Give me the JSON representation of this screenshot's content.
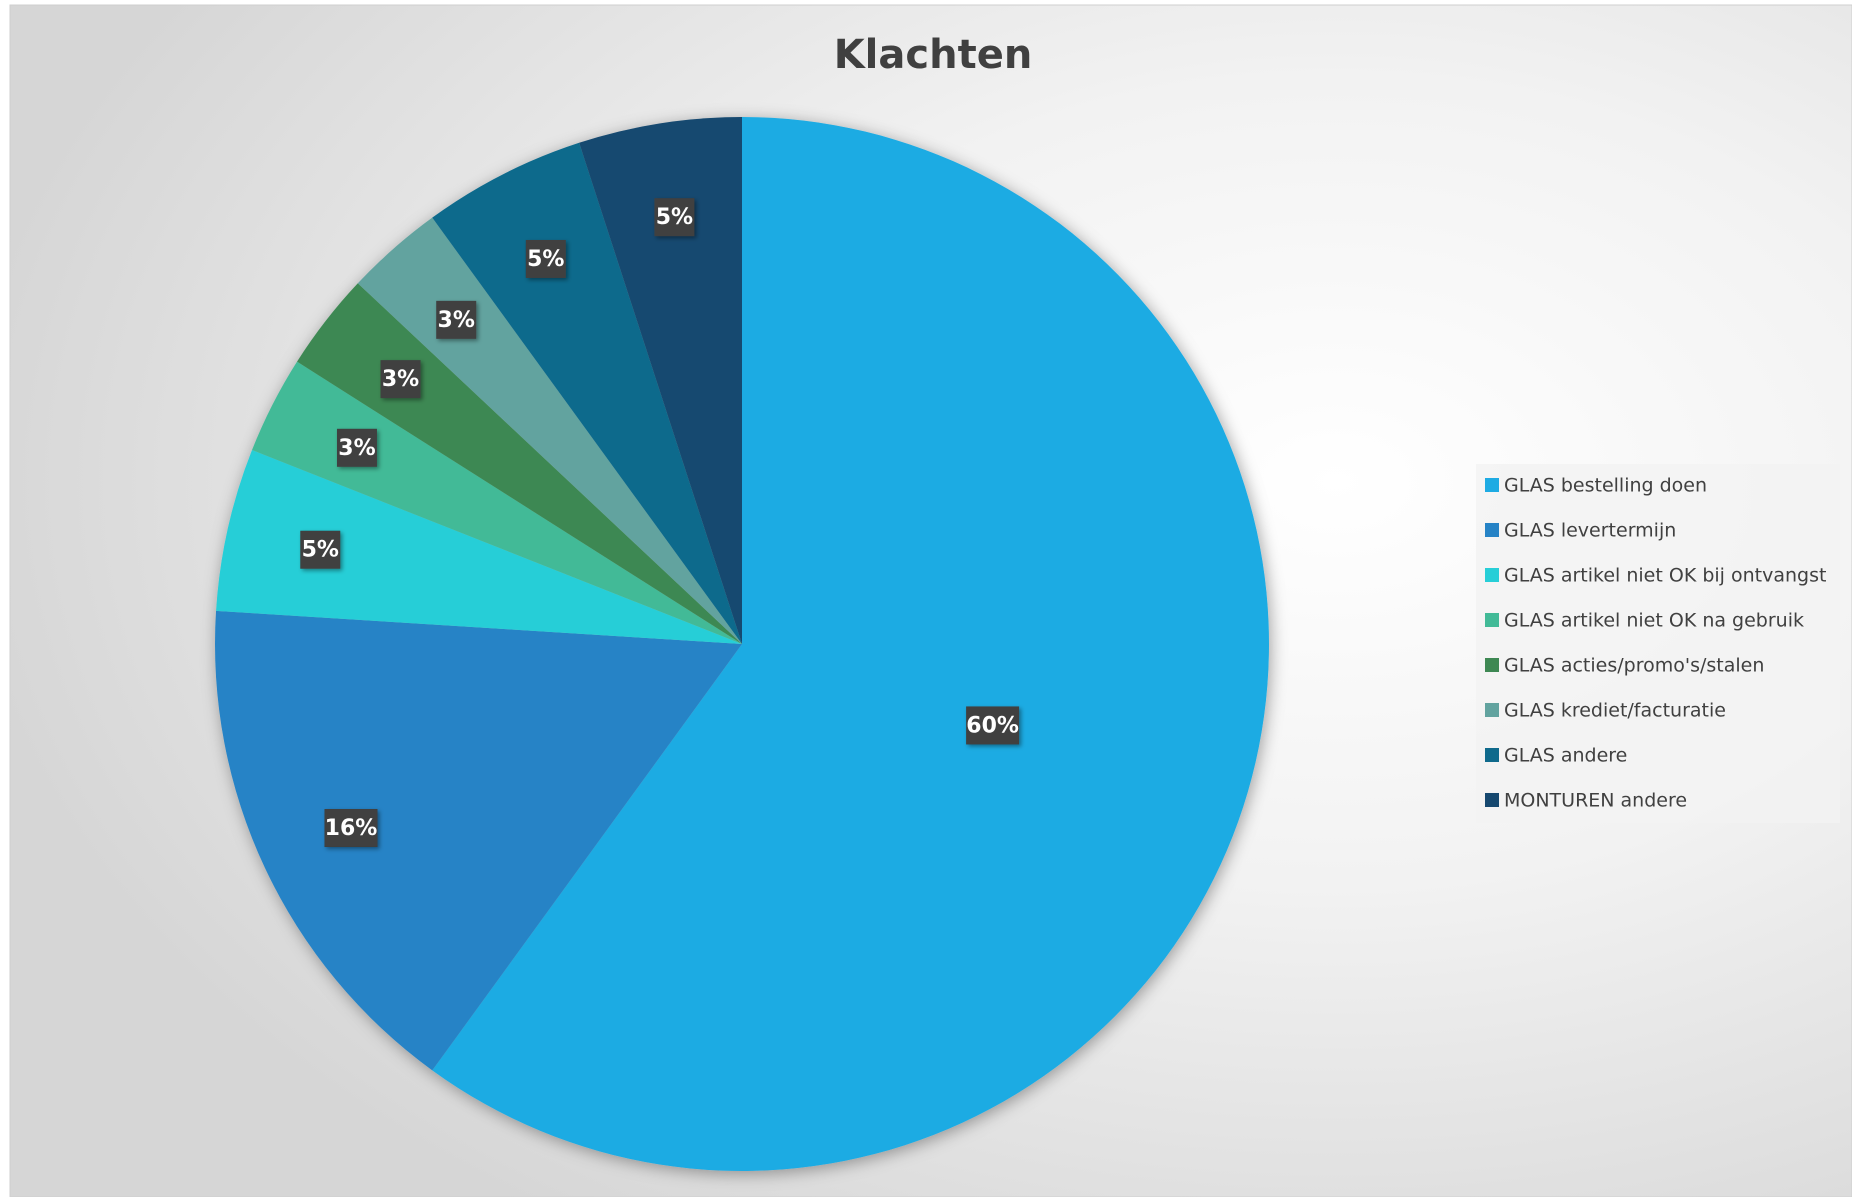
{
  "chart_data": {
    "type": "pie",
    "title": "Klachten",
    "categories": [
      "GLAS bestelling doen",
      "GLAS levertermijn",
      "GLAS artikel niet OK bij ontvangst",
      "GLAS artikel niet OK na gebruik",
      "GLAS acties/promo's/stalen",
      "GLAS krediet/facturatie",
      "GLAS andere",
      "MONTUREN andere"
    ],
    "values": [
      60,
      16,
      5,
      3,
      3,
      3,
      5,
      5
    ],
    "value_labels": [
      "60%",
      "16%",
      "5%",
      "3%",
      "3%",
      "3%",
      "5%",
      "5%"
    ],
    "colors": [
      "#1eabe3",
      "#2683c6",
      "#27ced7",
      "#42ba97",
      "#3e8853",
      "#62a39f",
      "#0f6a8c",
      "#16486f"
    ],
    "legend": "right"
  }
}
